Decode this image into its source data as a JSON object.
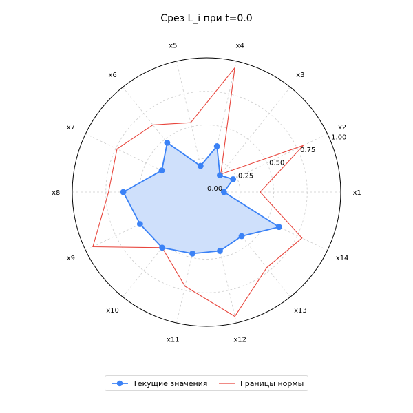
{
  "chart_data": {
    "type": "radar",
    "title": "Срез L_i при t=0.0",
    "categories": [
      "x1",
      "x2",
      "x3",
      "x4",
      "x5",
      "x6",
      "x7",
      "x8",
      "x9",
      "x10",
      "x11",
      "x12",
      "x13",
      "x14"
    ],
    "radial_ticks": [
      "0.00",
      "0.25",
      "0.50",
      "0.75",
      "1.00"
    ],
    "rlim": [
      0,
      1
    ],
    "grid": true,
    "legend_position": "bottom-center",
    "series": [
      {
        "name": "Текущие значения",
        "style": "filled line with markers",
        "color": "#3b82f6",
        "fill_color": "#cfe0fb",
        "values": [
          0.13,
          0.22,
          0.16,
          0.35,
          0.2,
          0.47,
          0.37,
          0.62,
          0.55,
          0.53,
          0.47,
          0.45,
          0.42,
          0.6
        ]
      },
      {
        "name": "Границы нормы",
        "style": "line",
        "color": "#e8453c",
        "values": [
          0.4,
          0.8,
          0.17,
          0.95,
          0.53,
          0.64,
          0.74,
          0.73,
          0.94,
          0.53,
          0.72,
          0.95,
          0.72,
          0.79
        ]
      }
    ]
  }
}
